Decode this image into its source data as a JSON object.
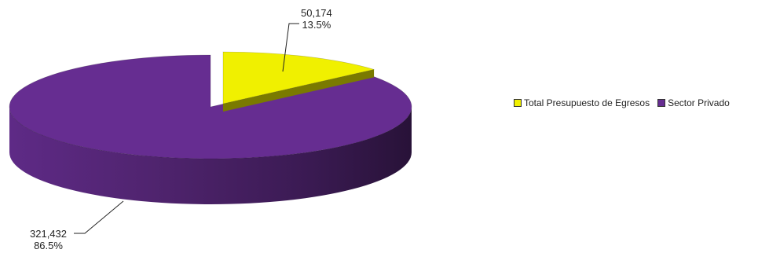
{
  "chart_data": {
    "type": "pie",
    "style": "3d-exploded",
    "slices": [
      {
        "name": "Total Presupuesto de Egresos",
        "value": 50174,
        "value_label": "50,174",
        "percent_label": "13.5%",
        "color": "#f0f000",
        "exploded": true
      },
      {
        "name": "Sector Privado",
        "value": 321432,
        "value_label": "321,432",
        "percent_label": "86.5%",
        "color": "#662d91",
        "exploded": false
      }
    ],
    "legend": {
      "position": "right",
      "entries": [
        "Total Presupuesto de Egresos",
        "Sector Privado"
      ]
    }
  }
}
